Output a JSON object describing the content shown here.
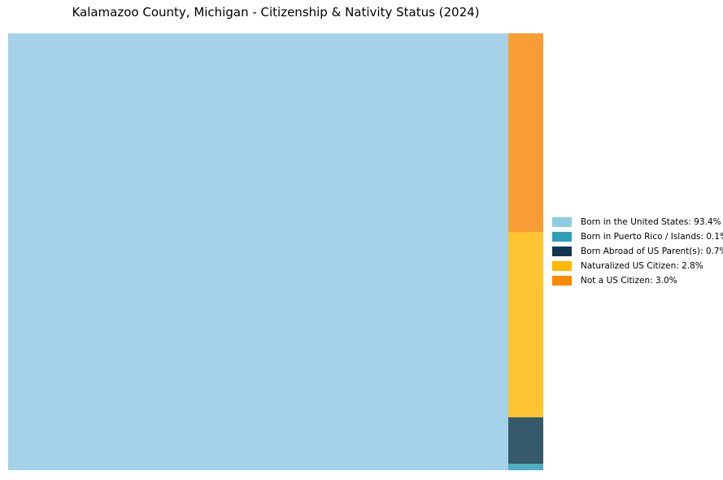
{
  "chart_data": {
    "type": "treemap",
    "title": "Kalamazoo County, Michigan - Citizenship & Nativity Status (2024)",
    "units": "%",
    "total": 100.0,
    "legend_position": "right",
    "grid": false,
    "slices": [
      {
        "label": "Born in the United States",
        "value": 93.4,
        "legend_label": "Born in the United States: 93.4%",
        "fill": "#a5d2e8",
        "legend_color": "#8fcbe3"
      },
      {
        "label": "Born in Puerto Rico / Islands",
        "value": 0.1,
        "legend_label": "Born in Puerto Rico / Islands: 0.1%",
        "fill": "#4fafc5",
        "legend_color": "#2e9fb9"
      },
      {
        "label": "Born Abroad of US Parent(s)",
        "value": 0.7,
        "legend_label": "Born Abroad of US Parent(s): 0.7%",
        "fill": "#365a6c",
        "legend_color": "#123750"
      },
      {
        "label": "Naturalized US Citizen",
        "value": 2.8,
        "legend_label": "Naturalized US Citizen: 2.8%",
        "fill": "#fec431",
        "legend_color": "#ffba00"
      },
      {
        "label": "Not a US Citizen",
        "value": 3.0,
        "legend_label": "Not a US Citizen: 3.0%",
        "fill": "#f99c33",
        "legend_color": "#f98a00"
      }
    ]
  }
}
